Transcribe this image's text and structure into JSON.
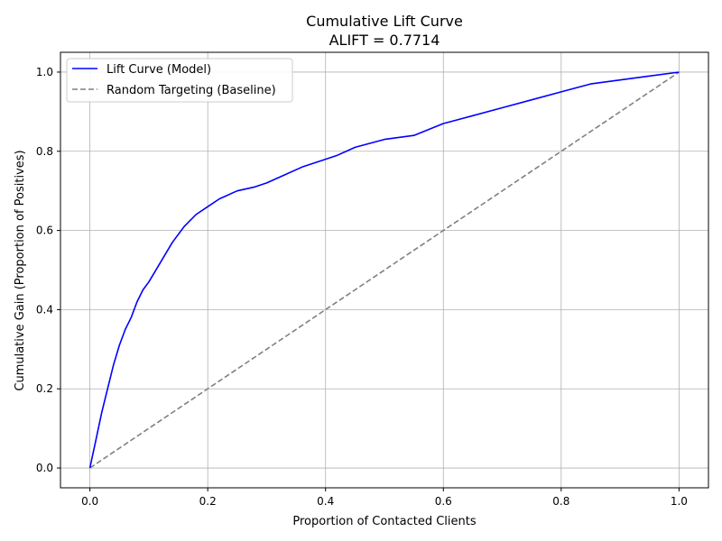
{
  "chart_data": {
    "type": "line",
    "title": "Cumulative Lift Curve",
    "subtitle": "ALIFT = 0.7714",
    "xlabel": "Proportion of Contacted Clients",
    "ylabel": "Cumulative Gain (Proportion of Positives)",
    "xlim": [
      -0.05,
      1.05
    ],
    "ylim": [
      -0.05,
      1.05
    ],
    "xticks": [
      0.0,
      0.2,
      0.4,
      0.6,
      0.8,
      1.0
    ],
    "xtick_labels": [
      "0.0",
      "0.2",
      "0.4",
      "0.6",
      "0.8",
      "1.0"
    ],
    "yticks": [
      0.0,
      0.2,
      0.4,
      0.6,
      0.8,
      1.0
    ],
    "ytick_labels": [
      "0.0",
      "0.2",
      "0.4",
      "0.6",
      "0.8",
      "1.0"
    ],
    "grid": true,
    "legend_position": "top-left",
    "series": [
      {
        "name": "Lift Curve (Model)",
        "color": "#0000ff",
        "style": "solid",
        "x": [
          0.0,
          0.01,
          0.02,
          0.03,
          0.04,
          0.05,
          0.06,
          0.07,
          0.08,
          0.09,
          0.1,
          0.12,
          0.14,
          0.16,
          0.18,
          0.2,
          0.22,
          0.25,
          0.28,
          0.3,
          0.33,
          0.36,
          0.4,
          0.42,
          0.45,
          0.5,
          0.55,
          0.6,
          0.65,
          0.7,
          0.75,
          0.8,
          0.85,
          0.9,
          0.95,
          1.0
        ],
        "y": [
          0.0,
          0.07,
          0.14,
          0.2,
          0.26,
          0.31,
          0.35,
          0.38,
          0.42,
          0.45,
          0.47,
          0.52,
          0.57,
          0.61,
          0.64,
          0.66,
          0.68,
          0.7,
          0.71,
          0.72,
          0.74,
          0.76,
          0.78,
          0.79,
          0.81,
          0.83,
          0.84,
          0.87,
          0.89,
          0.91,
          0.93,
          0.95,
          0.97,
          0.98,
          0.99,
          1.0
        ]
      },
      {
        "name": "Random Targeting (Baseline)",
        "color": "#808080",
        "style": "dashed",
        "x": [
          0.0,
          1.0
        ],
        "y": [
          0.0,
          1.0
        ]
      }
    ]
  }
}
